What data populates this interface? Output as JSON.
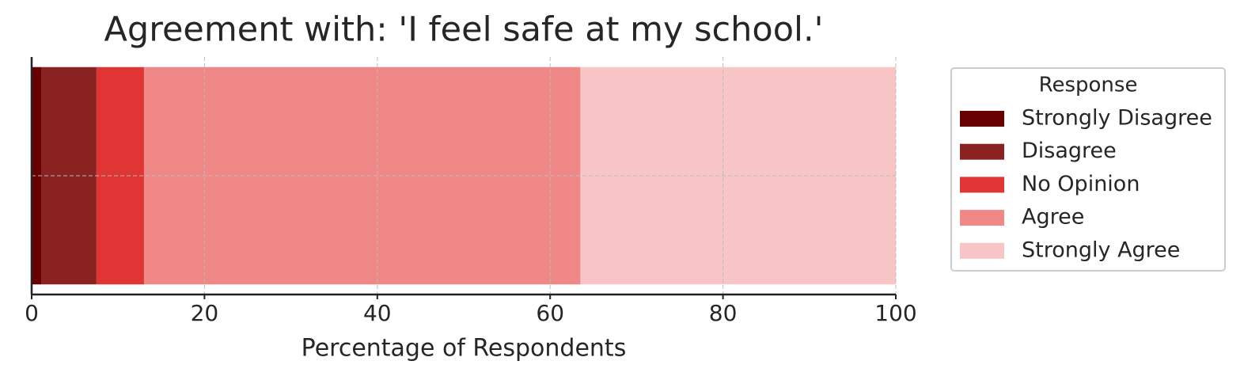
{
  "chart_data": {
    "type": "stacked-barh",
    "title": "Agreement with: 'I feel safe at my school.'",
    "xlabel": "Percentage of Respondents",
    "categories": [
      null
    ],
    "series": [
      {
        "name": "Strongly Disagree",
        "color": "#670000",
        "values": [
          1.1
        ]
      },
      {
        "name": "Disagree",
        "color": "#8b2222",
        "values": [
          6.4
        ]
      },
      {
        "name": "No Opinion",
        "color": "#e03535",
        "values": [
          5.5
        ]
      },
      {
        "name": "Agree",
        "color": "#f08888",
        "values": [
          50.5
        ]
      },
      {
        "name": "Strongly Agree",
        "color": "#f7c5c6",
        "values": [
          36.5
        ]
      }
    ],
    "xlim": [
      0,
      100
    ],
    "xticks": [
      0,
      20,
      40,
      60,
      80,
      100
    ],
    "grid": true,
    "legend_title": "Response",
    "legend": "outside right"
  }
}
